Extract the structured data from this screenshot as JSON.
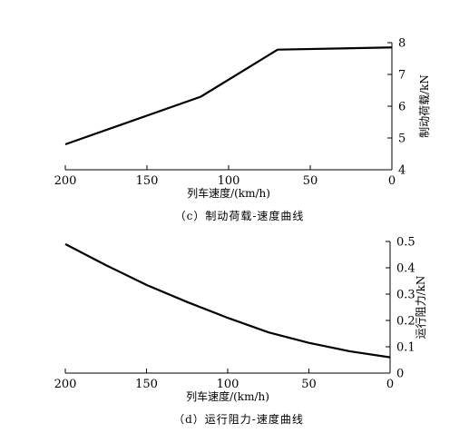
{
  "chart_data": [
    {
      "type": "line",
      "panel": "c",
      "caption": "（c）制动荷载-速度曲线",
      "xlabel": "列车速度/(km/h)",
      "ylabel": "制动荷载/kN",
      "xlim": [
        200,
        0
      ],
      "ylim": [
        4,
        8
      ],
      "x_ticks": [
        "200",
        "150",
        "100",
        "50",
        "0"
      ],
      "y_ticks": [
        "4",
        "5",
        "6",
        "7",
        "8"
      ],
      "x_direction": "reversed",
      "y_axis_position": "right",
      "series": [
        {
          "x": [
            200,
            117,
            70,
            0
          ],
          "y": [
            4.8,
            6.3,
            7.78,
            7.85
          ]
        }
      ]
    },
    {
      "type": "line",
      "panel": "d",
      "caption": "（d）运行阻力-速度曲线",
      "xlabel": "列车速度/(km/h)",
      "ylabel": "运行阻力/kN",
      "xlim": [
        200,
        0
      ],
      "ylim": [
        0,
        0.5
      ],
      "x_ticks": [
        "200",
        "150",
        "100",
        "50",
        "0"
      ],
      "y_ticks": [
        "0",
        "0.1",
        "0.2",
        "0.3",
        "0.4",
        "0.5"
      ],
      "x_direction": "reversed",
      "y_axis_position": "right",
      "series": [
        {
          "x": [
            200,
            175,
            150,
            125,
            100,
            75,
            50,
            25,
            0
          ],
          "y": [
            0.49,
            0.41,
            0.335,
            0.27,
            0.21,
            0.155,
            0.115,
            0.083,
            0.06
          ]
        }
      ]
    }
  ]
}
